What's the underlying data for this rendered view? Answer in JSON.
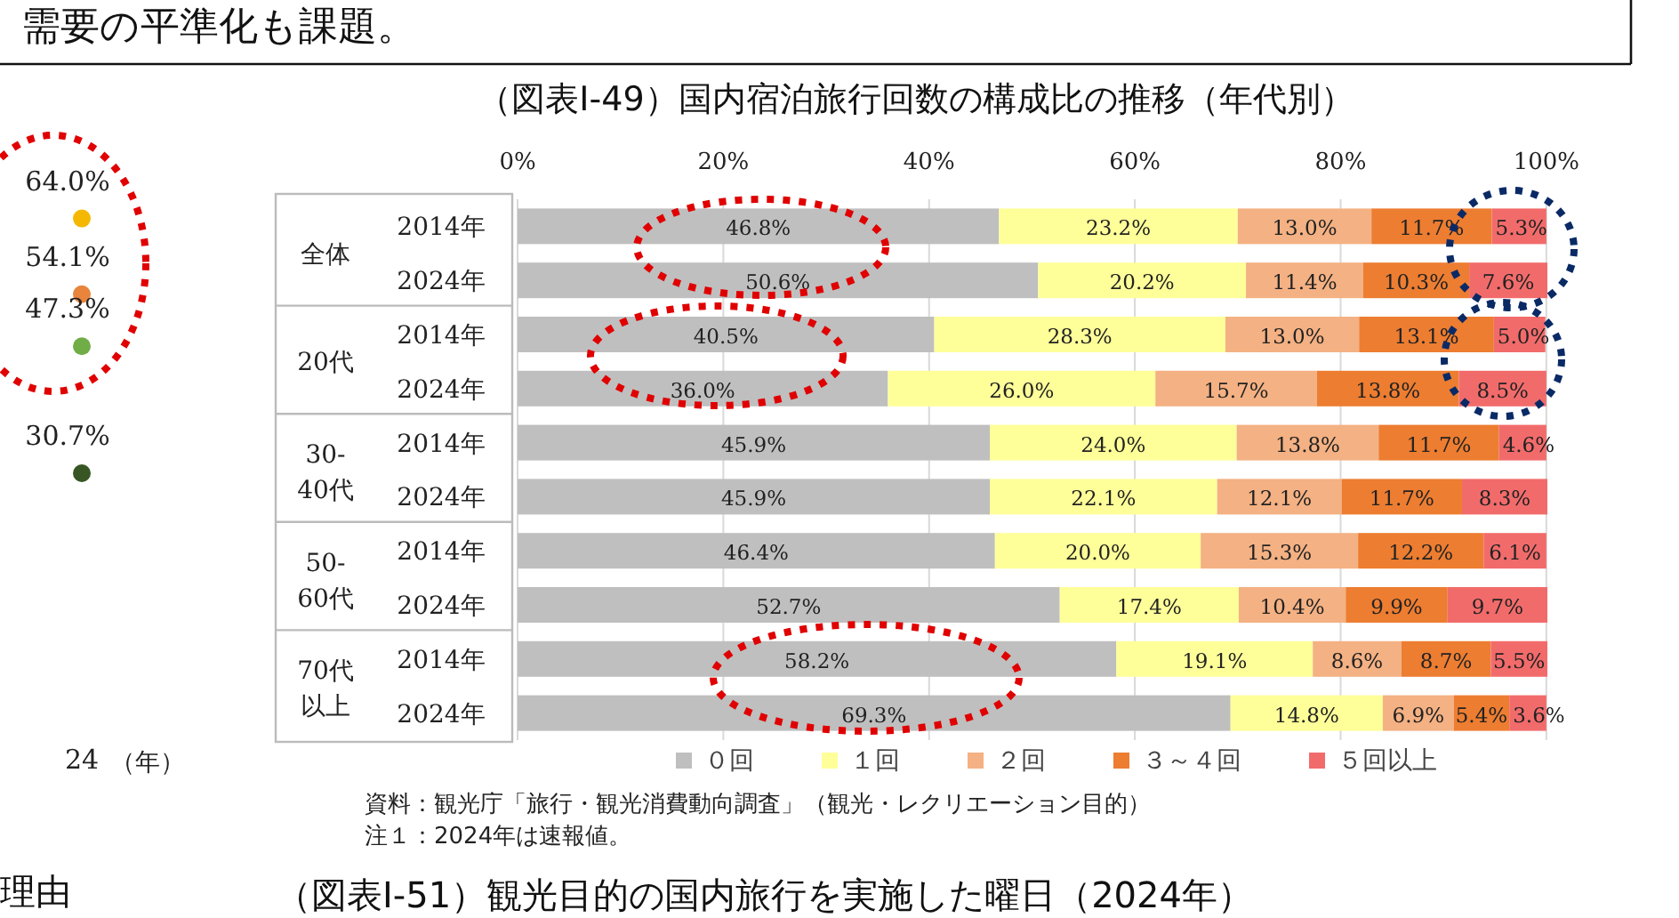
{
  "chart_data": [
    {
      "type": "other",
      "categories": [
        "24"
      ],
      "xlabel": "（年）",
      "data_labels": true,
      "series": [
        {
          "color": "#f5b800",
          "values": [
            64.0
          ],
          "value_labels": [
            "64.0%"
          ]
        },
        {
          "color": "#e8843c",
          "values": [
            54.1
          ],
          "value_labels": [
            "54.1%"
          ]
        },
        {
          "color": "#70ad47",
          "values": [
            47.3
          ],
          "value_labels": [
            "47.3%"
          ]
        },
        {
          "color": "#375623",
          "values": [
            30.7
          ],
          "value_labels": [
            "30.7%"
          ]
        }
      ]
    },
    {
      "type": "bar",
      "orientation": "horizontal",
      "stacked": true,
      "title": "（図表Ⅰ-49）国内宿泊旅行回数の構成比の推移（年代別）",
      "categories": [
        "2014年",
        "2024年",
        "2014年",
        "2024年",
        "2014年",
        "2024年",
        "2014年",
        "2024年",
        "2014年",
        "2024年"
      ],
      "xlim": [
        0,
        100.1
      ],
      "xticks": [
        {
          "value": 0,
          "label": "0%"
        },
        {
          "value": 20,
          "label": "20%"
        },
        {
          "value": 40,
          "label": "40%"
        },
        {
          "value": 60,
          "label": "60%"
        },
        {
          "value": 80,
          "label": "80%"
        },
        {
          "value": 100,
          "label": "100%"
        }
      ],
      "grid": "x",
      "legend": "bottom",
      "series": [
        {
          "name": "０回",
          "color": "#bfbfbf",
          "values": [
            46.8,
            50.6,
            40.5,
            36.0,
            45.9,
            45.9,
            46.4,
            52.7,
            58.2,
            69.3
          ],
          "value_labels": [
            "46.8%",
            "50.6%",
            "40.5%",
            "36.0%",
            "45.9%",
            "45.9%",
            "46.4%",
            "52.7%",
            "58.2%",
            "69.3%"
          ]
        },
        {
          "name": "１回",
          "color": "#ffff99",
          "values": [
            23.2,
            20.2,
            28.3,
            26.0,
            24.0,
            22.1,
            20.0,
            17.4,
            19.1,
            14.8
          ],
          "value_labels": [
            "23.2%",
            "20.2%",
            "28.3%",
            "26.0%",
            "24.0%",
            "22.1%",
            "20.0%",
            "17.4%",
            "19.1%",
            "14.8%"
          ]
        },
        {
          "name": "２回",
          "color": "#f4b183",
          "values": [
            13.0,
            11.4,
            13.0,
            15.7,
            13.8,
            12.1,
            15.3,
            10.4,
            8.6,
            6.9
          ],
          "value_labels": [
            "13.0%",
            "11.4%",
            "13.0%",
            "15.7%",
            "13.8%",
            "12.1%",
            "15.3%",
            "10.4%",
            "8.6%",
            "6.9%"
          ]
        },
        {
          "name": "３～４回",
          "color": "#ed7d31",
          "values": [
            11.7,
            10.3,
            13.1,
            13.8,
            11.7,
            11.7,
            12.2,
            9.9,
            8.7,
            5.4
          ],
          "value_labels": [
            "11.7%",
            "10.3%",
            "13.1%",
            "13.8%",
            "11.7%",
            "11.7%",
            "12.2%",
            "9.9%",
            "8.7%",
            "5.4%"
          ]
        },
        {
          "name": "５回以上",
          "color": "#f26b6b",
          "values": [
            5.3,
            7.6,
            5.0,
            8.5,
            4.6,
            8.3,
            6.1,
            9.7,
            5.5,
            3.6
          ],
          "value_labels": [
            "5.3%",
            "7.6%",
            "5.0%",
            "8.5%",
            "4.6%",
            "8.3%",
            "6.1%",
            "9.7%",
            "5.5%",
            "3.6%"
          ]
        }
      ],
      "annotations": [
        "全体",
        "20代",
        "30-40代",
        "50-60代",
        "70代以上",
        "資料：観光庁「旅行・観光消費動向調査」（観光・レクリエーション目的）",
        "注１：2024年は速報値。",
        "需要の平準化も課題。",
        "（図表Ⅰ-51）観光目的の国内旅行を実施した曜日（2024年）",
        "理由"
      ]
    }
  ]
}
